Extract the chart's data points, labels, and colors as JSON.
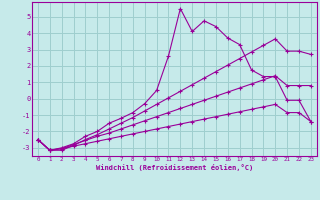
{
  "xlabel": "Windchill (Refroidissement éolien,°C)",
  "bg_color": "#c6eaea",
  "grid_color": "#9ecece",
  "line_color": "#990099",
  "xlim": [
    -0.5,
    23.5
  ],
  "ylim": [
    -3.5,
    5.9
  ],
  "xticks": [
    0,
    1,
    2,
    3,
    4,
    5,
    6,
    7,
    8,
    9,
    10,
    11,
    12,
    13,
    14,
    15,
    16,
    17,
    18,
    19,
    20,
    21,
    22,
    23
  ],
  "yticks": [
    -3,
    -2,
    -1,
    0,
    1,
    2,
    3,
    4,
    5
  ],
  "series": [
    [
      -2.5,
      -3.15,
      -3.15,
      -2.85,
      -2.5,
      -2.2,
      -1.85,
      -1.5,
      -1.15,
      -0.75,
      -0.35,
      0.05,
      0.45,
      0.85,
      1.25,
      1.65,
      2.05,
      2.45,
      2.85,
      3.25,
      3.65,
      2.9,
      2.9,
      2.7
    ],
    [
      -2.5,
      -3.15,
      -3.05,
      -2.8,
      -2.55,
      -2.3,
      -2.1,
      -1.85,
      -1.6,
      -1.35,
      -1.1,
      -0.85,
      -0.6,
      -0.35,
      -0.1,
      0.15,
      0.4,
      0.65,
      0.9,
      1.15,
      1.4,
      0.8,
      0.8,
      0.8
    ],
    [
      -2.5,
      -3.15,
      -3.05,
      -2.9,
      -2.75,
      -2.6,
      -2.45,
      -2.3,
      -2.15,
      -2.0,
      -1.85,
      -1.7,
      -1.55,
      -1.4,
      -1.25,
      -1.1,
      -0.95,
      -0.8,
      -0.65,
      -0.5,
      -0.35,
      -0.85,
      -0.85,
      -1.4
    ],
    [
      -2.5,
      -3.15,
      -3.0,
      -2.75,
      -2.3,
      -2.0,
      -1.5,
      -1.2,
      -0.85,
      -0.3,
      0.5,
      2.6,
      5.5,
      4.1,
      4.75,
      4.4,
      3.7,
      3.3,
      1.75,
      1.35,
      1.35,
      -0.1,
      -0.1,
      -1.4
    ]
  ]
}
